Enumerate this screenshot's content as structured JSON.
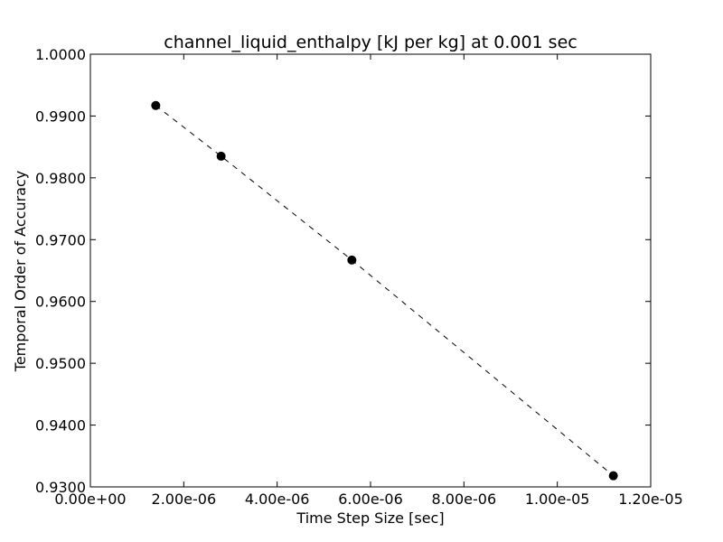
{
  "chart_data": {
    "type": "line",
    "title": "channel_liquid_enthalpy [kJ per kg] at 0.001 sec",
    "xlabel": "Time Step Size [sec]",
    "ylabel": "Temporal Order of Accuracy",
    "xlim": [
      0,
      1.2e-05
    ],
    "ylim": [
      0.93,
      1.0
    ],
    "x_ticks": [
      0,
      2e-06,
      4e-06,
      6e-06,
      8e-06,
      1e-05,
      1.2e-05
    ],
    "x_tick_labels": [
      "0.00e+00",
      "2.00e-06",
      "4.00e-06",
      "6.00e-06",
      "8.00e-06",
      "1.00e-05",
      "1.20e-05"
    ],
    "y_ticks": [
      0.93,
      0.94,
      0.95,
      0.96,
      0.97,
      0.98,
      0.99,
      1.0
    ],
    "y_tick_labels": [
      "0.9300",
      "0.9400",
      "0.9500",
      "0.9600",
      "0.9700",
      "0.9800",
      "0.9900",
      "1.0000"
    ],
    "grid": false,
    "series": [
      {
        "x": [
          1.4e-06,
          2.8e-06,
          5.6e-06,
          1.12e-05
        ],
        "y": [
          0.9917,
          0.9835,
          0.9667,
          0.9318
        ],
        "color": "#000000",
        "line_style": "dashed",
        "marker": "circle"
      }
    ]
  }
}
